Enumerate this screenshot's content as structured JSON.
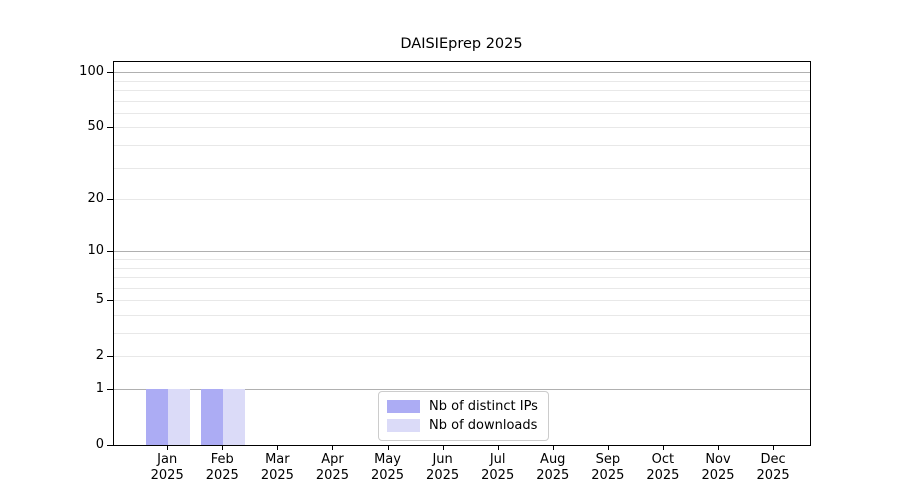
{
  "chart_data": {
    "type": "bar",
    "title": "DAISIEprep 2025",
    "year": "2025",
    "months": [
      "Jan",
      "Feb",
      "Mar",
      "Apr",
      "May",
      "Jun",
      "Jul",
      "Aug",
      "Sep",
      "Oct",
      "Nov",
      "Dec"
    ],
    "series": [
      {
        "name": "Nb of distinct IPs",
        "color": "#acacf4",
        "values": [
          1,
          1,
          0,
          0,
          0,
          0,
          0,
          0,
          0,
          0,
          0,
          0
        ]
      },
      {
        "name": "Nb of downloads",
        "color": "#dbdbf8",
        "values": [
          1,
          1,
          0,
          0,
          0,
          0,
          0,
          0,
          0,
          0,
          0,
          0
        ]
      }
    ],
    "yscale": "log10(1+y)",
    "yticks": [
      0,
      1,
      2,
      5,
      10,
      20,
      50,
      100
    ],
    "ytick_labels": [
      "0",
      "1",
      "2",
      "5",
      "10",
      "20",
      "50",
      "100"
    ],
    "y_minor_ticks": [
      3,
      4,
      6,
      7,
      8,
      9,
      30,
      40,
      60,
      70,
      80,
      90
    ],
    "ylim": [
      0,
      115
    ],
    "grid": "horizontal",
    "legend_position": "lower center",
    "colors": {
      "major_gridline": "#b0b0b0",
      "minor_gridline": "#e8e8e8",
      "axis": "#000000"
    }
  }
}
